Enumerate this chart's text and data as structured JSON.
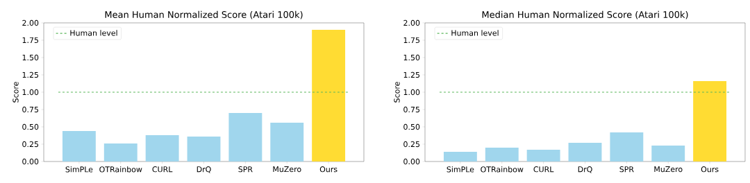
{
  "chart_data": [
    {
      "type": "bar",
      "title": "Mean Human Normalized Score (Atari 100k)",
      "ylabel": "Score",
      "categories": [
        "SimPLe",
        "OTRainbow",
        "CURL",
        "DrQ",
        "SPR",
        "MuZero",
        "Ours"
      ],
      "values": [
        0.44,
        0.26,
        0.38,
        0.36,
        0.7,
        0.56,
        1.9
      ],
      "colors": [
        "#a0d6ed",
        "#a0d6ed",
        "#a0d6ed",
        "#a0d6ed",
        "#a0d6ed",
        "#a0d6ed",
        "#ffdc33"
      ],
      "ref_lines": [
        {
          "axis": "y",
          "value": 1,
          "label": "Human level",
          "color": "#5cb85c",
          "line_style": "dashed"
        }
      ],
      "ylim": [
        0,
        2
      ],
      "yticks": [
        {
          "value": 0,
          "label": "0.00"
        },
        {
          "value": 0.25,
          "label": "0.25"
        },
        {
          "value": 0.5,
          "label": "0.50"
        },
        {
          "value": 0.75,
          "label": "0.75"
        },
        {
          "value": 1,
          "label": "1.00"
        },
        {
          "value": 1.25,
          "label": "1.25"
        },
        {
          "value": 1.5,
          "label": "1.50"
        },
        {
          "value": 1.75,
          "label": "1.75"
        },
        {
          "value": 2,
          "label": "2.00"
        }
      ],
      "legend": "top left"
    },
    {
      "type": "bar",
      "title": "Median Human Normalized Score (Atari 100k)",
      "ylabel": "Score",
      "categories": [
        "SimPLe",
        "OTRainbow",
        "CURL",
        "DrQ",
        "SPR",
        "MuZero",
        "Ours"
      ],
      "values": [
        0.14,
        0.2,
        0.17,
        0.27,
        0.42,
        0.23,
        1.16
      ],
      "colors": [
        "#a0d6ed",
        "#a0d6ed",
        "#a0d6ed",
        "#a0d6ed",
        "#a0d6ed",
        "#a0d6ed",
        "#ffdc33"
      ],
      "ref_lines": [
        {
          "axis": "y",
          "value": 1,
          "label": "Human level",
          "color": "#5cb85c",
          "line_style": "dashed"
        }
      ],
      "ylim": [
        0,
        2
      ],
      "yticks": [
        {
          "value": 0,
          "label": "0.00"
        },
        {
          "value": 0.25,
          "label": "0.25"
        },
        {
          "value": 0.5,
          "label": "0.50"
        },
        {
          "value": 0.75,
          "label": "0.75"
        },
        {
          "value": 1,
          "label": "1.00"
        },
        {
          "value": 1.25,
          "label": "1.25"
        },
        {
          "value": 1.5,
          "label": "1.50"
        },
        {
          "value": 1.75,
          "label": "1.75"
        },
        {
          "value": 2,
          "label": "2.00"
        }
      ],
      "legend": "top left"
    }
  ]
}
